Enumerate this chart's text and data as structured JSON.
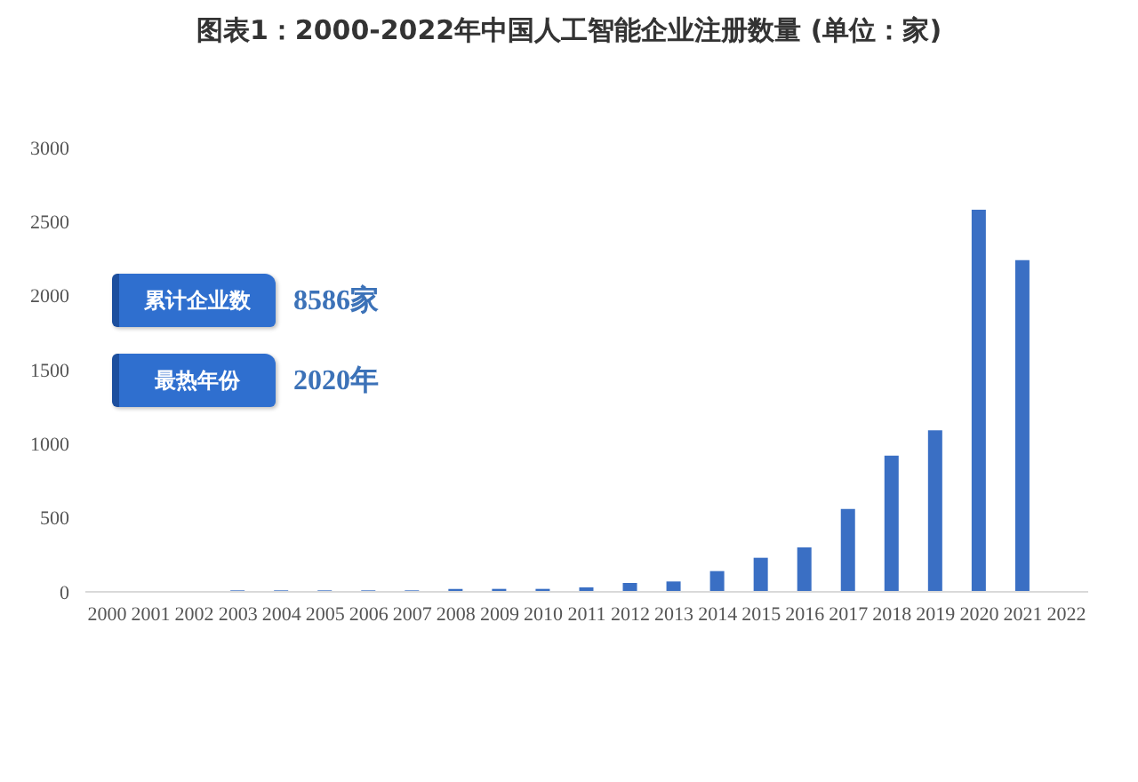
{
  "chart_data": {
    "type": "bar",
    "title": "图表1：2000-2022年中国人工智能企业注册数量 (单位：家)",
    "categories": [
      "2000",
      "2001",
      "2002",
      "2003",
      "2004",
      "2005",
      "2006",
      "2007",
      "2008",
      "2009",
      "2010",
      "2011",
      "2012",
      "2013",
      "2014",
      "2015",
      "2016",
      "2017",
      "2018",
      "2019",
      "2020",
      "2021",
      "2022"
    ],
    "values": [
      0,
      0,
      0,
      10,
      10,
      10,
      10,
      10,
      20,
      20,
      20,
      30,
      60,
      70,
      140,
      230,
      300,
      560,
      920,
      1090,
      2580,
      2240,
      null
    ],
    "color": "#3a6fc4",
    "ylim": [
      0,
      3000
    ],
    "yticks": [
      0,
      500,
      1000,
      1500,
      2000,
      2500,
      3000
    ],
    "annotations": [
      "累计企业数",
      "8586家",
      "最热年份",
      "2020年"
    ]
  }
}
